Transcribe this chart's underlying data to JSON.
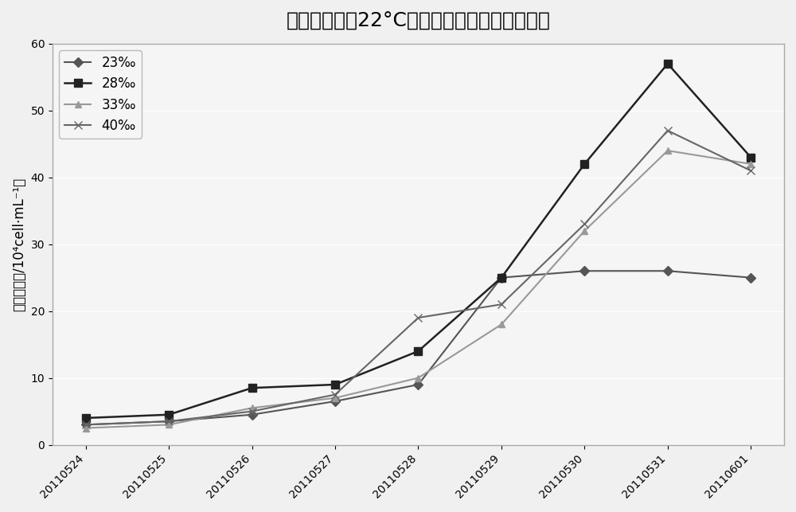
{
  "title": "米氏凯伦藻在22°C不同盐度条件下的生长曲线",
  "xlabel": "",
  "ylabel": "细胞密度（/10⁴cell·mL⁻¹）",
  "x_labels": [
    "20110524",
    "20110525",
    "20110526",
    "20110527",
    "20110528",
    "20110529",
    "20110530",
    "20110531",
    "20110601"
  ],
  "series": [
    {
      "label": "23‰",
      "color": "#555555",
      "marker": "D",
      "markersize": 6,
      "linewidth": 1.5,
      "values": [
        3.0,
        3.5,
        4.5,
        6.5,
        9.0,
        25.0,
        26.0,
        26.0,
        25.0
      ]
    },
    {
      "label": "28‰",
      "color": "#222222",
      "marker": "s",
      "markersize": 7,
      "linewidth": 1.8,
      "values": [
        4.0,
        4.5,
        8.5,
        9.0,
        14.0,
        25.0,
        42.0,
        57.0,
        43.0
      ]
    },
    {
      "label": "33‰",
      "color": "#999999",
      "marker": "^",
      "markersize": 6,
      "linewidth": 1.5,
      "values": [
        2.5,
        3.0,
        5.5,
        7.0,
        10.0,
        18.0,
        32.0,
        44.0,
        42.0
      ]
    },
    {
      "label": "40‰",
      "color": "#666666",
      "marker": "x",
      "markersize": 7,
      "linewidth": 1.5,
      "values": [
        3.0,
        3.5,
        5.0,
        7.5,
        19.0,
        21.0,
        33.0,
        47.0,
        41.0
      ]
    }
  ],
  "ylim": [
    0,
    60
  ],
  "yticks": [
    0,
    10,
    20,
    30,
    40,
    50,
    60
  ],
  "title_fontsize": 18,
  "legend_fontsize": 12,
  "axis_fontsize": 12,
  "tick_fontsize": 10,
  "background_color": "#f0f0f0",
  "plot_bg_color": "#f5f5f5",
  "grid_color": "#ffffff",
  "border_color": "#aaaaaa"
}
